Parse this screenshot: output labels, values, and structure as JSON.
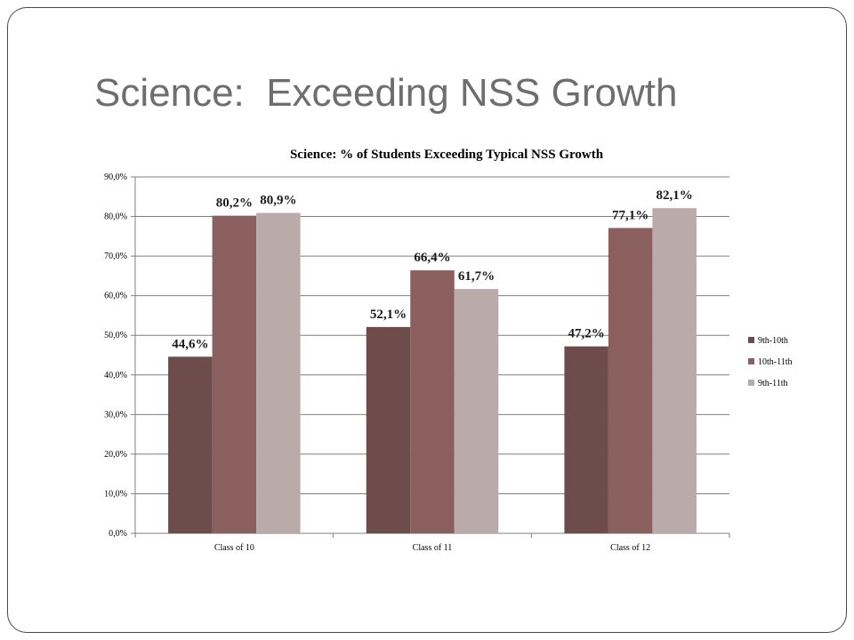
{
  "slide": {
    "title": "Science:  Exceeding NSS Growth"
  },
  "chart_data": {
    "type": "bar",
    "title": "Science: % of Students Exceeding Typical NSS Growth",
    "categories": [
      "Class of 10",
      "Class of 11",
      "Class of 12"
    ],
    "series": [
      {
        "name": "9th-10th",
        "values": [
          44.6,
          52.1,
          47.2
        ],
        "labels": [
          "44,6%",
          "52,1%",
          "47,2%"
        ],
        "color": "#6e4c4b"
      },
      {
        "name": "10th-11th",
        "values": [
          80.2,
          66.4,
          77.1
        ],
        "labels": [
          "80,2%",
          "66,4%",
          "77,1%"
        ],
        "color": "#8a5f5d"
      },
      {
        "name": "9th-11th",
        "values": [
          80.9,
          61.7,
          82.1
        ],
        "labels": [
          "80,9%",
          "61,7%",
          "82,1%"
        ],
        "color": "#baaaa9"
      }
    ],
    "ylim": [
      0,
      90
    ],
    "yticks": [
      "0,0%",
      "10,0%",
      "20,0%",
      "30,0%",
      "40,0%",
      "50,0%",
      "60,0%",
      "70,0%",
      "80,0%",
      "90,0%"
    ],
    "grid": true,
    "legend_position": "right"
  }
}
